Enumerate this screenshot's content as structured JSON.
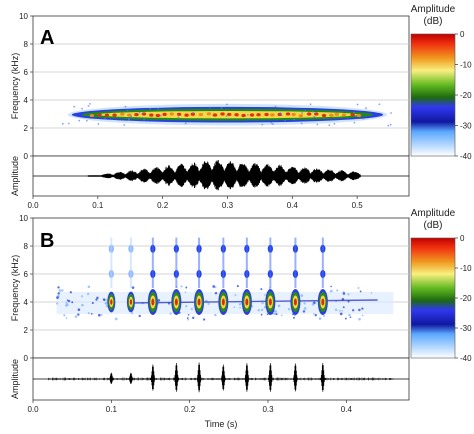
{
  "chart_data": [
    {
      "type": "heatmap",
      "panel_label": "A",
      "subtype": "spectrogram",
      "xlabel": "",
      "ylabel": "Frequency (kHz)",
      "amplitude_label": "Amplitude",
      "xlim": [
        0,
        0.58
      ],
      "ylim": [
        0,
        10
      ],
      "x_ticks": [
        "0.0",
        "0.1",
        "0.2",
        "0.3",
        "0.4",
        "0.5"
      ],
      "y_ticks": [
        "0",
        "2",
        "4",
        "6",
        "8",
        "10"
      ],
      "call": {
        "start_s": 0.06,
        "end_s": 0.54,
        "freq_khz": 2.95,
        "band_khz": 0.35,
        "peak_db": -5
      },
      "waveform": {
        "start_s": 0.085,
        "end_s": 0.505,
        "peak_s": 0.28,
        "n_pulses": 22
      },
      "colorbar": {
        "title_line1": "Amplitude",
        "title_line2": "(dB)",
        "ticks": [
          "0",
          "-10",
          "-20",
          "-30",
          "-40"
        ],
        "range": [
          -40,
          0
        ]
      }
    },
    {
      "type": "heatmap",
      "panel_label": "B",
      "subtype": "spectrogram",
      "xlabel": "Time (s)",
      "ylabel": "Frequency (kHz)",
      "amplitude_label": "Amplitude",
      "xlim": [
        0,
        0.48
      ],
      "ylim": [
        0,
        10
      ],
      "x_ticks": [
        "0.0",
        "0.1",
        "0.2",
        "0.3",
        "0.4"
      ],
      "y_ticks": [
        "0",
        "2",
        "4",
        "6",
        "8",
        "10"
      ],
      "pulse_times_s": [
        0.1,
        0.125,
        0.153,
        0.183,
        0.212,
        0.243,
        0.273,
        0.303,
        0.335,
        0.37
      ],
      "fundamental_khz": 4.0,
      "harmonics_khz": [
        6.0,
        7.8
      ],
      "colorbar": {
        "title_line1": "Amplitude",
        "title_line2": "(dB)",
        "ticks": [
          "0",
          "-10",
          "-20",
          "-30",
          "-40"
        ],
        "range": [
          -40,
          0
        ]
      }
    }
  ],
  "colors": {
    "scale": [
      "#ffffff",
      "#c8e0ff",
      "#3050ff",
      "#1010c0",
      "#308010",
      "#70c020",
      "#f0f060",
      "#f0a020",
      "#e03010",
      "#c00000"
    ]
  }
}
